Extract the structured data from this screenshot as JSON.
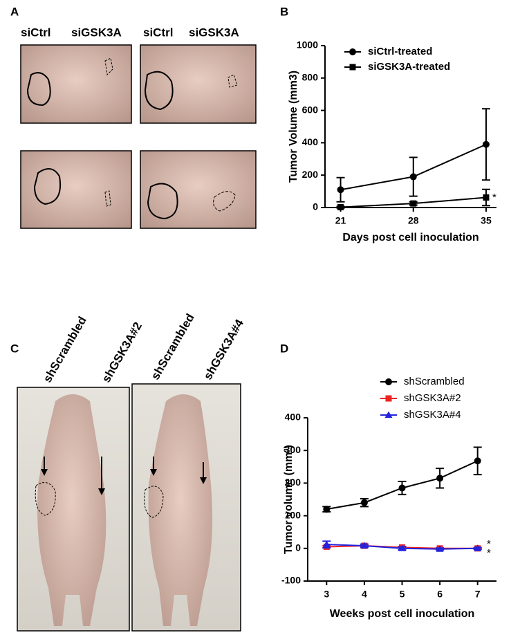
{
  "panels": [
    "A",
    "B",
    "C",
    "D"
  ],
  "photo_labels_a": [
    "siCtrl",
    "siGSK3A",
    "siCtrl",
    "siGSK3A"
  ],
  "photo_labels_c": [
    "shScrambled",
    "shGSK3A#2",
    "shScrambled",
    "shGSK3A#4"
  ],
  "chart_data": [
    {
      "type": "line",
      "x_label": "Days post cell inoculation",
      "y_label": "Tumor Volume (mm3)",
      "x": [
        21,
        28,
        35
      ],
      "xlim": [
        19.5,
        36
      ],
      "xticks": [
        21,
        28,
        35
      ],
      "ylim": [
        0,
        1000
      ],
      "yticks": [
        0,
        200,
        400,
        600,
        800,
        1000
      ],
      "series": [
        {
          "name": "siCtrl-treated",
          "color": "#000000",
          "marker": "circle",
          "values": [
            110,
            190,
            390
          ],
          "errors": [
            75,
            120,
            220
          ]
        },
        {
          "name": "siGSK3A-treated",
          "color": "#000000",
          "marker": "square",
          "values": [
            2,
            25,
            62
          ],
          "errors": [
            5,
            10,
            50
          ]
        }
      ],
      "annotations": [
        "*"
      ]
    },
    {
      "type": "line",
      "x_label": "Weeks post cell inoculation",
      "y_label": "Tumor volume (mm³)",
      "x": [
        3,
        4,
        5,
        6,
        7
      ],
      "xlim": [
        2.5,
        7.5
      ],
      "xticks": [
        3,
        4,
        5,
        6,
        7
      ],
      "ylim": [
        -100,
        400
      ],
      "yticks": [
        -100,
        0,
        100,
        200,
        300,
        400
      ],
      "series": [
        {
          "name": "shScrambled",
          "color": "#000000",
          "marker": "circle",
          "values": [
            120,
            140,
            185,
            215,
            268
          ],
          "errors": [
            8,
            12,
            20,
            30,
            42
          ]
        },
        {
          "name": "shGSK3A#2",
          "color": "#ee2222",
          "marker": "square",
          "values": [
            5,
            8,
            3,
            0,
            0
          ],
          "errors": [
            3,
            3,
            3,
            2,
            2
          ]
        },
        {
          "name": "shGSK3A#4",
          "color": "#2222dd",
          "marker": "triangle",
          "values": [
            12,
            8,
            0,
            -2,
            0
          ],
          "errors": [
            10,
            5,
            5,
            3,
            3
          ]
        }
      ],
      "annotations": [
        "*",
        "*"
      ]
    }
  ]
}
